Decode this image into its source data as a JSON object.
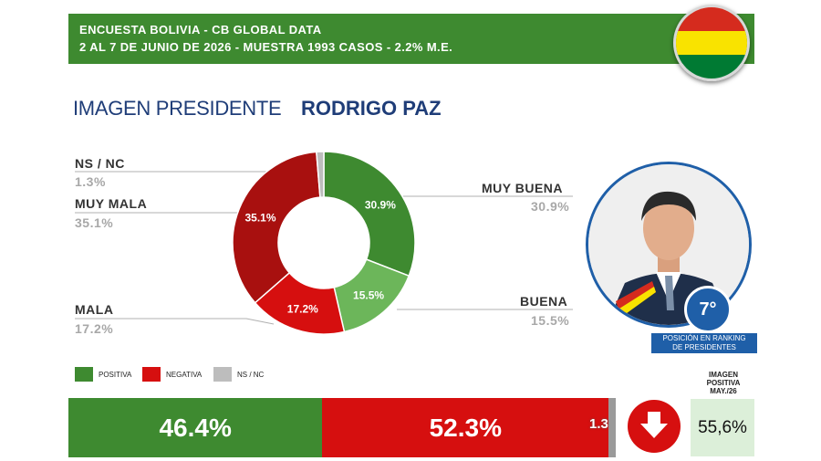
{
  "header": {
    "line1": "ENCUESTA BOLIVIA - CB GLOBAL DATA",
    "line2": "2 AL 7 DE JUNIO DE 2026 - MUESTRA 1993 CASOS - 2.2% M.E.",
    "bg_color": "#3e8a30"
  },
  "flag": {
    "colors": [
      "#d52b1e",
      "#f9e300",
      "#007a33"
    ]
  },
  "title": {
    "main": "IMAGEN PRESIDENTE",
    "name": "RODRIGO PAZ"
  },
  "chart_data": {
    "type": "pie",
    "title": "",
    "slices": [
      {
        "label": "MUY BUENA",
        "value": 30.9,
        "display": "30.9%",
        "color": "#3e8a30"
      },
      {
        "label": "BUENA",
        "value": 15.5,
        "display": "15.5%",
        "color": "#6cb65a"
      },
      {
        "label": "MALA",
        "value": 17.2,
        "display": "17.2%",
        "color": "#d60f0f"
      },
      {
        "label": "MUY MALA",
        "value": 35.1,
        "display": "35.1%",
        "color": "#a8100f"
      },
      {
        "label": "NS / NC",
        "value": 1.3,
        "display": "1.3%",
        "color": "#bdbdbd"
      }
    ],
    "side_labels": {
      "muy_buena": {
        "name": "MUY BUENA",
        "value": "30.9%"
      },
      "buena": {
        "name": "BUENA",
        "value": "15.5%"
      },
      "mala": {
        "name": "MALA",
        "value": "17.2%"
      },
      "muy_mala": {
        "name": "MUY MALA",
        "value": "35.1%"
      },
      "nsnc": {
        "name": "NS / NC",
        "value": "1.3%"
      }
    },
    "legend": [
      {
        "label": "POSITIVA",
        "color": "#3e8a30"
      },
      {
        "label": "NEGATIVA",
        "color": "#d60f0f"
      },
      {
        "label": "NS / NC",
        "color": "#bdbdbd"
      }
    ],
    "summary_bar": [
      {
        "label": "46.4%",
        "value": 46.4,
        "color": "#3e8a30"
      },
      {
        "label": "52.3%",
        "value": 52.3,
        "color": "#d60f0f"
      },
      {
        "label": "1.3",
        "value": 1.3,
        "color": "#9a9a9a"
      }
    ]
  },
  "ranking": {
    "position": "7°",
    "caption_line1": "POSICIÓN EN RANKING",
    "caption_line2": "DE PRESIDENTES"
  },
  "trend": {
    "icon": "arrow-down-icon",
    "color": "#d60f0f"
  },
  "imagen_positiva": {
    "line1": "IMAGEN",
    "line2": "POSITIVA",
    "line3": "MAY./26",
    "value": "55,6%"
  }
}
